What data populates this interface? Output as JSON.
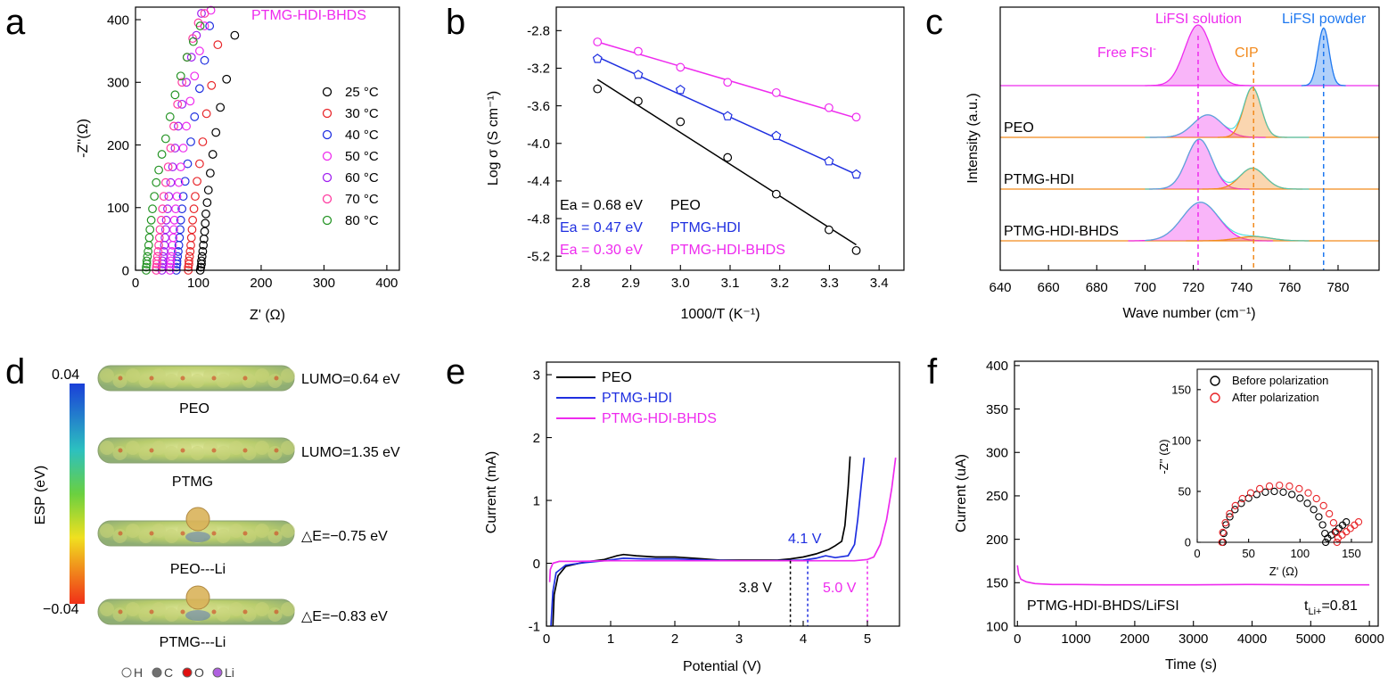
{
  "colors": {
    "black": "#000000",
    "red": "#e8262a",
    "blue": "#1f2fe0",
    "magenta": "#ee2bee",
    "purple": "#a020f0",
    "pink": "#ff3aa0",
    "green": "#259425",
    "orange": "#f28a1c",
    "lightblue": "#1e78f0",
    "cyan": "#2bd3d3"
  },
  "panels": {
    "a": {
      "letter": "a"
    },
    "b": {
      "letter": "b"
    },
    "c": {
      "letter": "c"
    },
    "d": {
      "letter": "d"
    },
    "e": {
      "letter": "e"
    },
    "f": {
      "letter": "f"
    }
  },
  "chart_data": [
    {
      "id": "a",
      "type": "scatter",
      "title": "PTMG-HDI-BHDS",
      "xlabel": "Z' (Ω)",
      "ylabel": "-Z''(Ω)",
      "xlim": [
        0,
        420
      ],
      "ylim": [
        0,
        420
      ],
      "xticks": [
        0,
        100,
        200,
        300,
        400
      ],
      "yticks": [
        0,
        100,
        200,
        300,
        400
      ],
      "legend_position": "right",
      "series": [
        {
          "name": "25 °C",
          "color": "#000000",
          "x": [
            103,
            104,
            105,
            105,
            106,
            107,
            108,
            109,
            110,
            111,
            112,
            114,
            116,
            119,
            123,
            128,
            135,
            145,
            158
          ],
          "y": [
            0,
            5,
            10,
            15,
            22,
            30,
            40,
            50,
            62,
            75,
            90,
            108,
            128,
            155,
            185,
            220,
            260,
            305,
            375
          ]
        },
        {
          "name": "30 °C",
          "color": "#e8262a",
          "x": [
            84,
            84,
            85,
            85,
            86,
            87,
            88,
            89,
            90,
            91,
            93,
            95,
            98,
            102,
            107,
            113,
            121,
            131
          ],
          "y": [
            0,
            5,
            10,
            15,
            22,
            30,
            40,
            52,
            65,
            80,
            98,
            118,
            142,
            170,
            205,
            250,
            295,
            360
          ]
        },
        {
          "name": "40 °C",
          "color": "#1f2fe0",
          "x": [
            65,
            65,
            66,
            66,
            67,
            68,
            69,
            70,
            71,
            72,
            74,
            76,
            79,
            83,
            88,
            94,
            102,
            110,
            118
          ],
          "y": [
            0,
            5,
            10,
            15,
            22,
            30,
            40,
            52,
            65,
            80,
            98,
            118,
            142,
            170,
            205,
            245,
            290,
            335,
            390
          ]
        },
        {
          "name": "50 °C",
          "color": "#ee2bee",
          "x": [
            55,
            55,
            56,
            56,
            57,
            58,
            59,
            60,
            61,
            62,
            64,
            66,
            69,
            72,
            76,
            81,
            87,
            94,
            102,
            110,
            120
          ],
          "y": [
            0,
            5,
            10,
            15,
            22,
            30,
            40,
            52,
            65,
            80,
            98,
            118,
            140,
            165,
            195,
            230,
            270,
            310,
            350,
            390,
            415
          ]
        },
        {
          "name": "60 °C",
          "color": "#a020f0",
          "x": [
            42,
            42,
            43,
            43,
            44,
            45,
            46,
            47,
            48,
            49,
            51,
            53,
            56,
            59,
            63,
            68,
            74,
            81,
            89,
            97,
            105
          ],
          "y": [
            0,
            5,
            10,
            15,
            22,
            30,
            40,
            52,
            65,
            80,
            98,
            118,
            140,
            165,
            195,
            230,
            265,
            300,
            340,
            375,
            410
          ]
        },
        {
          "name": "70 °C",
          "color": "#ff3aa0",
          "x": [
            33,
            33,
            34,
            34,
            35,
            36,
            37,
            38,
            39,
            41,
            43,
            45,
            48,
            52,
            56,
            61,
            67,
            74,
            82,
            91,
            100,
            110
          ],
          "y": [
            0,
            5,
            10,
            15,
            22,
            30,
            40,
            52,
            65,
            80,
            98,
            118,
            140,
            165,
            195,
            230,
            265,
            300,
            340,
            370,
            395,
            410
          ]
        },
        {
          "name": "80 °C",
          "color": "#259425",
          "x": [
            17,
            17,
            18,
            18,
            19,
            20,
            21,
            22,
            23,
            25,
            27,
            30,
            33,
            37,
            42,
            48,
            55,
            63,
            72,
            82,
            92,
            103
          ],
          "y": [
            0,
            5,
            10,
            15,
            22,
            30,
            40,
            52,
            65,
            80,
            98,
            118,
            140,
            160,
            185,
            210,
            245,
            280,
            310,
            340,
            365,
            390
          ]
        }
      ]
    },
    {
      "id": "b",
      "type": "scatter",
      "xlabel": "1000/T (K⁻¹)",
      "ylabel": "Log σ (S cm⁻¹)",
      "xlim": [
        2.75,
        3.45
      ],
      "ylim": [
        -5.35,
        -2.55
      ],
      "xticks": [
        2.8,
        2.9,
        3.0,
        3.1,
        3.2,
        3.3,
        3.4
      ],
      "yticks": [
        -2.8,
        -3.2,
        -3.6,
        -4.0,
        -4.4,
        -4.8,
        -5.2
      ],
      "series": [
        {
          "name": "PEO",
          "color": "#000000",
          "marker": "circle",
          "x": [
            2.833,
            2.915,
            3.0,
            3.095,
            3.193,
            3.299,
            3.354
          ],
          "y": [
            -3.42,
            -3.55,
            -3.77,
            -4.15,
            -4.54,
            -4.92,
            -5.14
          ],
          "fit": [
            [
              2.833,
              -3.32
            ],
            [
              3.354,
              -5.08
            ]
          ]
        },
        {
          "name": "PTMG-HDI",
          "color": "#1f2fe0",
          "marker": "pentagon",
          "x": [
            2.833,
            2.915,
            3.0,
            3.095,
            3.193,
            3.299,
            3.354
          ],
          "y": [
            -3.1,
            -3.27,
            -3.43,
            -3.71,
            -3.92,
            -4.19,
            -4.33
          ],
          "fit": [
            [
              2.833,
              -3.08
            ],
            [
              3.354,
              -4.33
            ]
          ]
        },
        {
          "name": "PTMG-HDI-BHDS",
          "color": "#ee2bee",
          "marker": "circle",
          "x": [
            2.833,
            2.915,
            3.0,
            3.095,
            3.193,
            3.299,
            3.354
          ],
          "y": [
            -2.92,
            -3.02,
            -3.19,
            -3.35,
            -3.46,
            -3.62,
            -3.72
          ],
          "fit": [
            [
              2.833,
              -2.92
            ],
            [
              3.354,
              -3.73
            ]
          ]
        }
      ],
      "annotations": [
        {
          "ea": "Ea = 0.68 eV",
          "label": "PEO",
          "color": "#000000"
        },
        {
          "ea": "Ea = 0.47 eV",
          "label": "PTMG-HDI",
          "color": "#1f2fe0"
        },
        {
          "ea": "Ea = 0.30 eV",
          "label": "PTMG-HDI-BHDS",
          "color": "#ee2bee"
        }
      ]
    },
    {
      "id": "c",
      "type": "area",
      "xlabel": "Wave number (cm⁻¹)",
      "ylabel": "Intensity (a.u.)",
      "xlim": [
        640,
        797
      ],
      "xticks": [
        640,
        660,
        680,
        700,
        720,
        740,
        760,
        780
      ],
      "peak_lines": [
        {
          "x": 722,
          "color": "#ee2bee"
        },
        {
          "x": 745,
          "color": "#f28a1c"
        },
        {
          "x": 774,
          "color": "#1e78f0"
        }
      ],
      "labels": {
        "solution": "LiFSI solution",
        "powder": "LiFSI powder",
        "free": "Free FSI",
        "free_sup": "-",
        "cip": "CIP"
      },
      "spectra": [
        {
          "name": "",
          "peaks": [
            {
              "center": 722,
              "height": 1.0,
              "width": 5.5,
              "color": "#ee2bee"
            },
            {
              "center": 774,
              "height": 0.95,
              "width": 2.3,
              "color": "#1e78f0"
            }
          ]
        },
        {
          "name": "PEO",
          "peaks": [
            {
              "center": 726,
              "height": 0.45,
              "width": 6,
              "color": "#ee2bee"
            },
            {
              "center": 744.5,
              "height": 1.0,
              "width": 3.6,
              "color": "#f28a1c"
            }
          ]
        },
        {
          "name": "PTMG-HDI",
          "peaks": [
            {
              "center": 722.5,
              "height": 1.0,
              "width": 5.2,
              "color": "#ee2bee"
            },
            {
              "center": 744.5,
              "height": 0.42,
              "width": 5.2,
              "color": "#f28a1c"
            }
          ]
        },
        {
          "name": "PTMG-HDI-BHDS",
          "peaks": [
            {
              "center": 723,
              "height": 0.9,
              "width": 7.5,
              "color": "#ee2bee"
            },
            {
              "center": 745,
              "height": 0.1,
              "width": 7,
              "color": "#f28a1c"
            }
          ]
        }
      ]
    },
    {
      "id": "e",
      "type": "line",
      "xlabel": "Potential (V)",
      "ylabel": "Current (mA)",
      "xlim": [
        0,
        5.5
      ],
      "ylim": [
        -1,
        3.2
      ],
      "xticks": [
        0,
        1,
        2,
        3,
        4,
        5
      ],
      "yticks": [
        -1,
        0,
        1,
        2,
        3
      ],
      "legend_position": "top-left",
      "series": [
        {
          "name": "PEO",
          "color": "#000000",
          "x": [
            0.1,
            0.12,
            0.18,
            0.3,
            0.6,
            0.9,
            1.1,
            1.2,
            1.4,
            1.7,
            2.0,
            2.3,
            2.7,
            3.0,
            3.3,
            3.6,
            3.8,
            4.0,
            4.2,
            4.4,
            4.5,
            4.6,
            4.65,
            4.7,
            4.73
          ],
          "y": [
            -1,
            -0.5,
            -0.2,
            -0.05,
            0.02,
            0.06,
            0.12,
            0.14,
            0.12,
            0.1,
            0.1,
            0.08,
            0.05,
            0.05,
            0.05,
            0.05,
            0.07,
            0.1,
            0.15,
            0.22,
            0.28,
            0.35,
            0.6,
            1.2,
            1.7
          ]
        },
        {
          "name": "PTMG-HDI",
          "color": "#1f2fe0",
          "x": [
            0.07,
            0.1,
            0.15,
            0.3,
            0.6,
            0.9,
            1.2,
            1.5,
            2.0,
            2.5,
            3.0,
            3.5,
            4.0,
            4.2,
            4.35,
            4.5,
            4.7,
            4.8,
            4.85,
            4.9,
            4.95
          ],
          "y": [
            -1,
            -0.45,
            -0.15,
            -0.03,
            0.01,
            0.04,
            0.08,
            0.07,
            0.07,
            0.05,
            0.04,
            0.04,
            0.05,
            0.08,
            0.12,
            0.09,
            0.12,
            0.3,
            0.7,
            1.2,
            1.68
          ]
        },
        {
          "name": "PTMG-HDI-BHDS",
          "color": "#ee2bee",
          "x": [
            0.05,
            0.06,
            0.1,
            0.2,
            0.5,
            1.0,
            2.0,
            3.0,
            4.0,
            4.8,
            5.0,
            5.1,
            5.2,
            5.3,
            5.38,
            5.44
          ],
          "y": [
            -0.3,
            -0.1,
            0.0,
            0.03,
            0.03,
            0.04,
            0.04,
            0.04,
            0.04,
            0.04,
            0.06,
            0.1,
            0.3,
            0.7,
            1.2,
            1.68
          ]
        }
      ],
      "markers": [
        {
          "x": 3.8,
          "label": "3.8 V",
          "color": "#000000"
        },
        {
          "x": 4.07,
          "label": "4.1 V",
          "color": "#1f2fe0"
        },
        {
          "x": 5.0,
          "label": "5.0 V",
          "color": "#ee2bee"
        }
      ]
    },
    {
      "id": "f",
      "type": "line",
      "xlabel": "Time (s)",
      "ylabel": "Current (uA)",
      "xlim": [
        -50,
        6150
      ],
      "ylim": [
        100,
        405
      ],
      "xticks": [
        0,
        1000,
        2000,
        3000,
        4000,
        5000,
        6000
      ],
      "yticks": [
        100,
        150,
        200,
        250,
        300,
        350,
        400
      ],
      "series": [
        {
          "name": "PTMG-HDI-BHDS/LiFSI",
          "color": "#ee2bee",
          "x": [
            0,
            20,
            60,
            150,
            300,
            600,
            1000,
            1500,
            2000,
            3000,
            4000,
            5000,
            6000
          ],
          "y": [
            170,
            160,
            154,
            151,
            149,
            148,
            148,
            147.5,
            147.5,
            147.5,
            148,
            147.5,
            147.5
          ]
        }
      ],
      "sample_label": "PTMG-HDI-BHDS/LiFSI",
      "t_label": "t",
      "t_sub": "Li+",
      "t_value": "=0.81",
      "inset": {
        "type": "scatter",
        "xlabel": "Z' (Ω)",
        "ylabel": "-Z'' (Ω)",
        "xlim": [
          0,
          170
        ],
        "ylim": [
          0,
          170
        ],
        "xticks": [
          0,
          50,
          100,
          150
        ],
        "yticks": [
          0,
          50,
          100,
          150
        ],
        "legend_position": "top-right",
        "series": [
          {
            "name": "Before polarization",
            "color": "#000000",
            "center": 75,
            "radius": 50,
            "tail_start": 127,
            "tail_end": 145
          },
          {
            "name": "After polarization",
            "color": "#e8262a",
            "center": 80,
            "radius": 56,
            "tail_start": 137,
            "tail_end": 157
          }
        ]
      }
    }
  ],
  "panel_d": {
    "colorbar": {
      "max": "0.04",
      "min": "−0.04",
      "label": "ESP (eV)"
    },
    "molecules": [
      {
        "name": "PEO",
        "value": "LUMO=0.64 eV"
      },
      {
        "name": "PTMG",
        "value": "LUMO=1.35 eV"
      },
      {
        "name": "PEO---Li",
        "value": "△E=−0.75 eV"
      },
      {
        "name": "PTMG---Li",
        "value": "△E=−0.83 eV"
      }
    ],
    "atom_legend": [
      {
        "name": "H",
        "color": "#ffffff"
      },
      {
        "name": "C",
        "color": "#707070"
      },
      {
        "name": "O",
        "color": "#e01010"
      },
      {
        "name": "Li",
        "color": "#b060e0"
      }
    ]
  }
}
